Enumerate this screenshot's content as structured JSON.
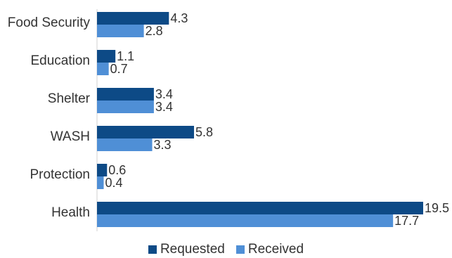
{
  "chart_data": {
    "type": "bar",
    "orientation": "horizontal",
    "categories": [
      "Food Security",
      "Education",
      "Shelter",
      "WASH",
      "Protection",
      "Health"
    ],
    "series": [
      {
        "name": "Requested",
        "values": [
          4.3,
          1.1,
          3.4,
          5.8,
          0.6,
          19.5
        ],
        "color": "#0d4a86"
      },
      {
        "name": "Received",
        "values": [
          2.8,
          0.7,
          3.4,
          3.3,
          0.4,
          17.7
        ],
        "color": "#4f8fd6"
      }
    ],
    "value_labels": {
      "Requested": [
        "4.3",
        "1.1",
        "3.4",
        "5.8",
        "0.6",
        "19.5"
      ],
      "Received": [
        "2.8",
        "0.7",
        "3.4",
        "3.3",
        "0.4",
        "17.7"
      ]
    },
    "title": "",
    "xlabel": "",
    "ylabel": "",
    "xlim": [
      0,
      19.5
    ],
    "grid": false,
    "legend": "bottom-center"
  }
}
